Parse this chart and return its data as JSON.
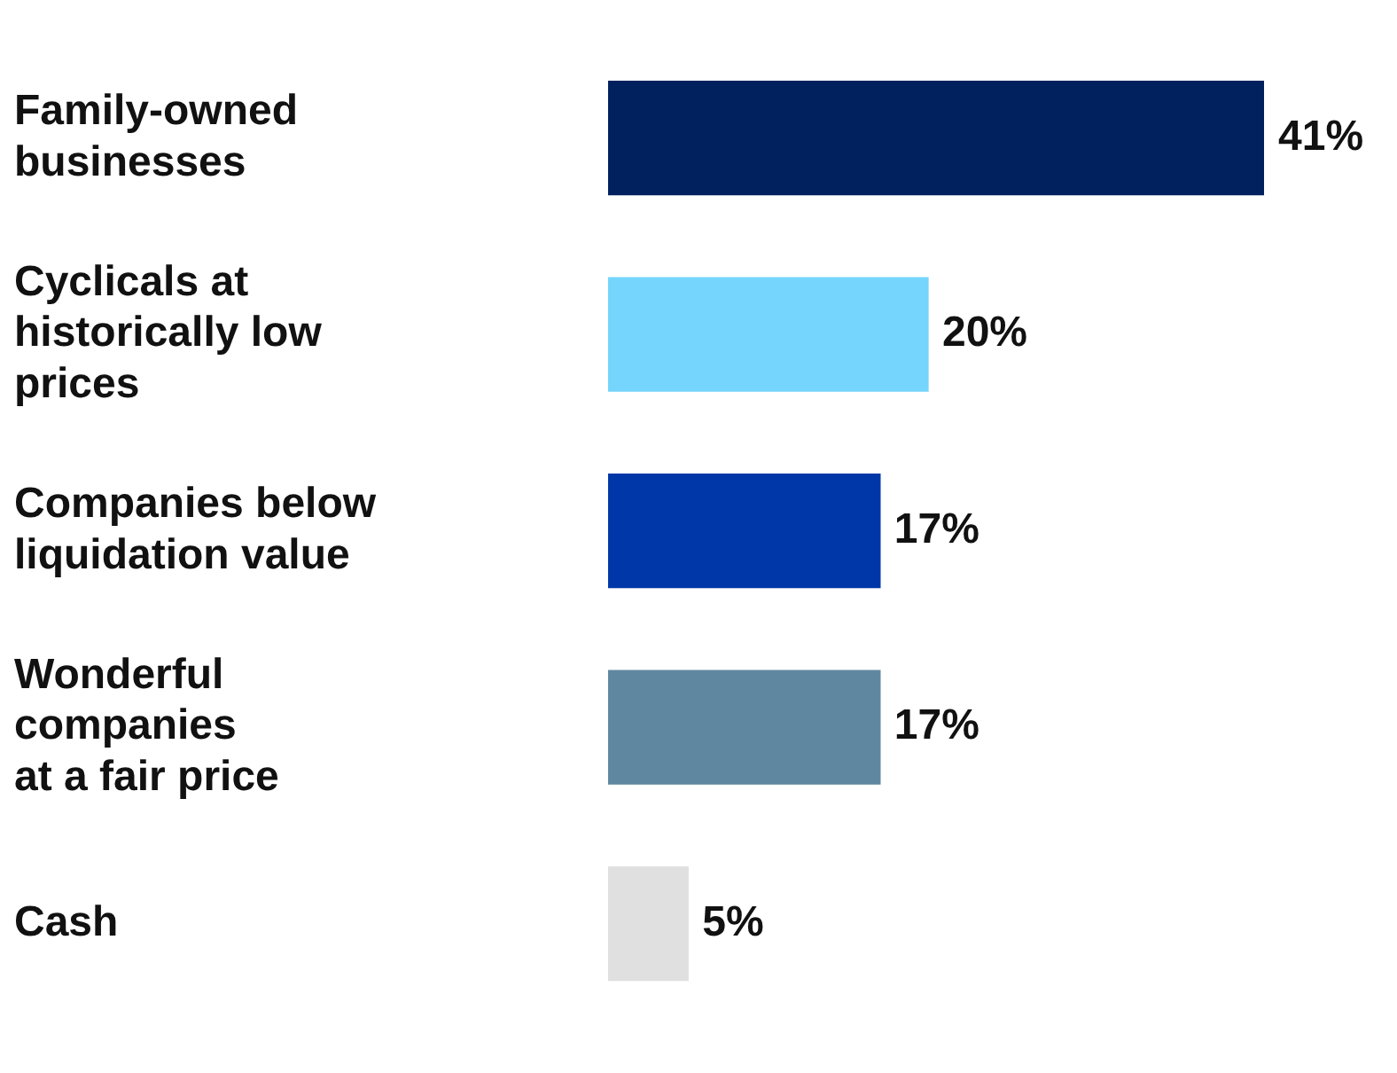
{
  "chart_data": {
    "type": "bar",
    "orientation": "horizontal",
    "categories": [
      "Family-owned\nbusinesses",
      "Cyclicals at\nhistorically low\nprices",
      "Companies below\nliquidation value",
      "Wonderful\ncompanies\nat a fair price",
      "Cash"
    ],
    "values": [
      41,
      20,
      17,
      17,
      5
    ],
    "colors": [
      "#00215e",
      "#75d5fc",
      "#0037a8",
      "#5f87a0",
      "#e0e0e0"
    ],
    "value_labels": [
      "41%",
      "20%",
      "17%",
      "17%",
      "5%"
    ],
    "grid": false,
    "legend": false
  }
}
